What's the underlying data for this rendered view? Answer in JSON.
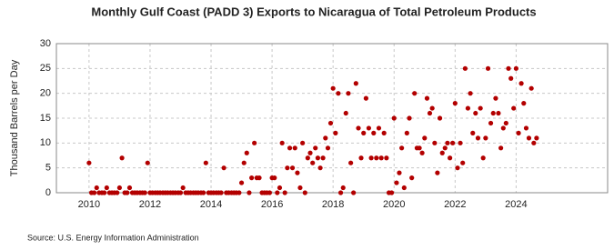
{
  "chart_data": {
    "type": "scatter",
    "title": "Monthly Gulf Coast (PADD 3) Exports to Nicaragua of Total Petroleum Products",
    "y_label": "Thousand Barrels per Day",
    "source": "Source: U.S. Energy Information Administration",
    "color": "#b30000",
    "grid": true,
    "xlim": [
      2008.93,
      2027.0
    ],
    "xticks": [
      2010,
      2012,
      2014,
      2016,
      2018,
      2020,
      2022,
      2024
    ],
    "ylim": [
      0,
      30
    ],
    "yticks": [
      0,
      5,
      10,
      15,
      20,
      25,
      30
    ],
    "x": [
      2010,
      2010.08,
      2010.17,
      2010.25,
      2010.33,
      2010.42,
      2010.5,
      2010.58,
      2010.67,
      2010.75,
      2010.83,
      2010.92,
      2011,
      2011.08,
      2011.17,
      2011.25,
      2011.33,
      2011.42,
      2011.5,
      2011.58,
      2011.67,
      2011.75,
      2011.83,
      2011.92,
      2012,
      2012.08,
      2012.17,
      2012.25,
      2012.33,
      2012.42,
      2012.5,
      2012.58,
      2012.67,
      2012.75,
      2012.83,
      2012.92,
      2013,
      2013.08,
      2013.17,
      2013.25,
      2013.33,
      2013.42,
      2013.5,
      2013.58,
      2013.67,
      2013.75,
      2013.83,
      2013.92,
      2014,
      2014.08,
      2014.17,
      2014.25,
      2014.33,
      2014.42,
      2014.5,
      2014.58,
      2014.67,
      2014.75,
      2014.83,
      2014.92,
      2015,
      2015.08,
      2015.17,
      2015.25,
      2015.33,
      2015.42,
      2015.5,
      2015.58,
      2015.67,
      2015.75,
      2015.83,
      2015.92,
      2016,
      2016.08,
      2016.17,
      2016.25,
      2016.33,
      2016.42,
      2016.5,
      2016.58,
      2016.67,
      2016.75,
      2016.83,
      2016.92,
      2017,
      2017.08,
      2017.17,
      2017.25,
      2017.33,
      2017.42,
      2017.5,
      2017.58,
      2017.67,
      2017.75,
      2017.83,
      2017.92,
      2018,
      2018.08,
      2018.17,
      2018.25,
      2018.33,
      2018.42,
      2018.5,
      2018.58,
      2018.67,
      2018.75,
      2018.83,
      2018.92,
      2019,
      2019.08,
      2019.17,
      2019.25,
      2019.33,
      2019.42,
      2019.5,
      2019.58,
      2019.67,
      2019.75,
      2019.83,
      2019.92,
      2020,
      2020.08,
      2020.17,
      2020.25,
      2020.33,
      2020.42,
      2020.5,
      2020.58,
      2020.67,
      2020.75,
      2020.83,
      2020.92,
      2021,
      2021.08,
      2021.17,
      2021.25,
      2021.33,
      2021.42,
      2021.5,
      2021.58,
      2021.67,
      2021.75,
      2021.83,
      2021.92,
      2022,
      2022.08,
      2022.17,
      2022.25,
      2022.33,
      2022.42,
      2022.5,
      2022.58,
      2022.67,
      2022.75,
      2022.83,
      2022.92,
      2023,
      2023.08,
      2023.17,
      2023.25,
      2023.33,
      2023.42,
      2023.5,
      2023.58,
      2023.67,
      2023.75,
      2023.83,
      2023.92,
      2024,
      2024.08,
      2024.17,
      2024.25,
      2024.33,
      2024.42,
      2024.5,
      2024.58,
      2024.67
    ],
    "values": [
      6,
      0,
      0,
      1,
      0,
      0,
      0,
      1,
      0,
      0,
      0,
      0,
      1,
      7,
      0,
      0,
      1,
      0,
      0,
      0,
      0,
      0,
      0,
      6,
      0,
      0,
      0,
      0,
      0,
      0,
      0,
      0,
      0,
      0,
      0,
      0,
      0,
      1,
      0,
      0,
      0,
      0,
      0,
      0,
      0,
      0,
      6,
      0,
      0,
      0,
      0,
      0,
      0,
      5,
      0,
      0,
      0,
      0,
      0,
      0,
      2,
      6,
      8,
      0,
      3,
      10,
      3,
      3,
      0,
      0,
      0,
      0,
      3,
      3,
      0,
      1,
      10,
      0,
      5,
      9,
      5,
      9,
      4,
      1,
      10,
      0,
      7,
      8,
      6,
      9,
      7,
      5,
      7,
      11,
      9,
      14,
      21,
      12,
      20,
      0,
      1,
      16,
      20,
      6,
      0,
      22,
      13,
      7,
      12,
      19,
      13,
      7,
      12,
      7,
      13,
      7,
      12,
      7,
      0,
      0,
      15,
      2,
      4,
      9,
      1,
      12,
      15,
      3,
      20,
      9,
      9,
      8,
      11,
      19,
      16,
      17,
      10,
      4,
      15,
      8,
      9,
      10,
      7,
      10,
      18,
      5,
      10,
      6,
      25,
      17,
      20,
      12,
      16,
      11,
      17,
      7,
      11,
      25,
      14,
      16,
      19,
      16,
      9,
      13,
      14,
      25,
      23,
      17,
      25,
      12,
      22,
      18,
      13,
      11,
      21,
      10,
      11
    ]
  }
}
